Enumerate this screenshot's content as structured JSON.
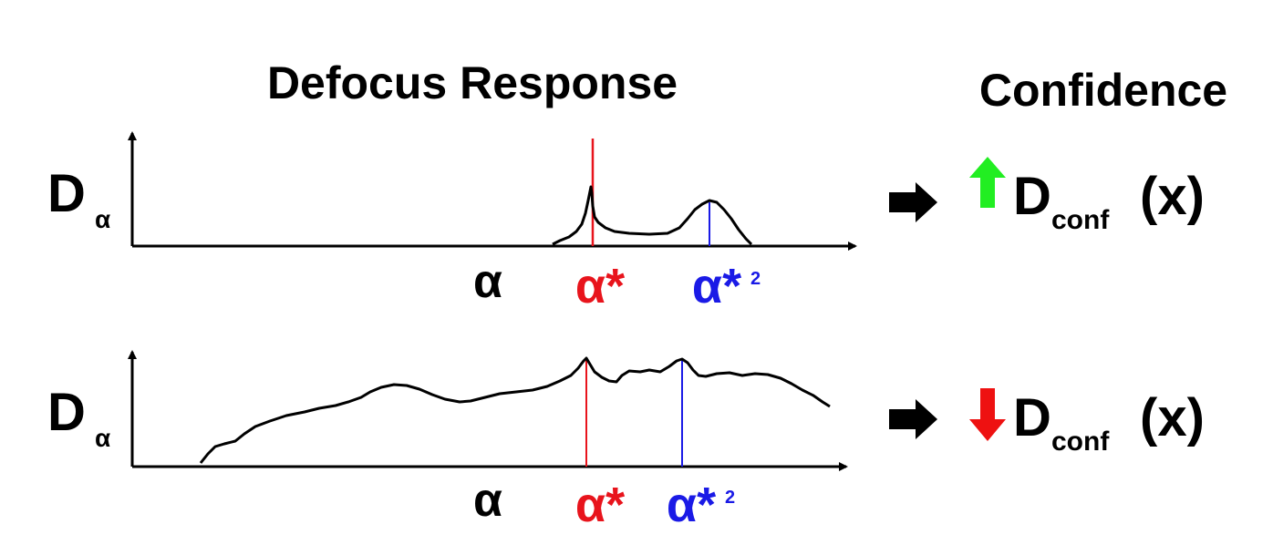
{
  "titles": {
    "left": "Defocus Response",
    "right": "Confidence"
  },
  "panels": [
    {
      "y_label": "D",
      "y_label_sub": "α",
      "x_label": "α",
      "peak1_label": "α*",
      "peak2_label": "α*",
      "peak2_sub": "2",
      "confidence_direction": "up",
      "confidence_arrow_color": "#22ee22",
      "output_label": "D",
      "output_sub": "conf",
      "output_arg": "(x)"
    },
    {
      "y_label": "D",
      "y_label_sub": "α",
      "x_label": "α",
      "peak1_label": "α*",
      "peak2_label": "α*",
      "peak2_sub": "2",
      "confidence_direction": "down",
      "confidence_arrow_color": "#ee1111",
      "output_label": "D",
      "output_sub": "conf",
      "output_arg": "(x)"
    }
  ],
  "colors": {
    "peak1": "#e8141c",
    "peak2": "#1a1ae6",
    "curve": "#000000"
  }
}
